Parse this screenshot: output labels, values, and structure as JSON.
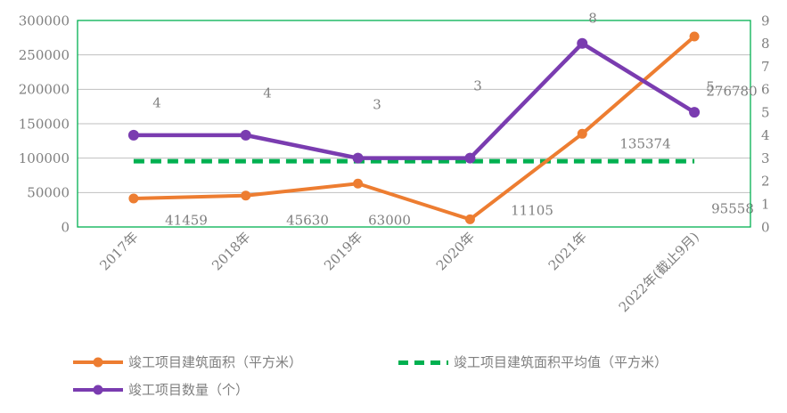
{
  "chart_data": {
    "type": "line",
    "title": "",
    "categories": [
      "2017年",
      "2018年",
      "2019年",
      "2020年",
      "2021年",
      "2022年(截止9月)"
    ],
    "series": [
      {
        "name": "竣工项目建筑面积（平方米）",
        "axis": "left",
        "color": "#ED7D31",
        "marker": "circle",
        "values": [
          41459,
          45630,
          63000,
          11105,
          135374,
          276780
        ],
        "data_labels": [
          "41459",
          "45630",
          "63000",
          "11105",
          "135374",
          "276780"
        ]
      },
      {
        "name": "竣工项目数量（个）",
        "axis": "right",
        "color": "#7A3CB0",
        "marker": "circle",
        "values": [
          4,
          4,
          3,
          3,
          8,
          5
        ],
        "data_labels": [
          "4",
          "4",
          "3",
          "3",
          "8",
          "5"
        ]
      },
      {
        "name": "竣工项目建筑面积平均值（平方米）",
        "axis": "left",
        "color": "#00B050",
        "line_style": "dashed",
        "value": 95558,
        "data_label": "95558"
      }
    ],
    "axes": {
      "y_left": {
        "min": 0,
        "max": 300000,
        "step": 50000,
        "tick_labels": [
          "0",
          "50000",
          "100000",
          "150000",
          "200000",
          "250000",
          "300000"
        ]
      },
      "y_right": {
        "min": 0,
        "max": 9,
        "step": 1,
        "tick_labels": [
          "0",
          "1",
          "2",
          "3",
          "4",
          "5",
          "6",
          "7",
          "8",
          "9"
        ]
      },
      "x": {
        "tick_labels": [
          "2017年",
          "2018年",
          "2019年",
          "2020年",
          "2021年",
          "2022年(截止9月)"
        ],
        "label_rotation_deg": -45
      }
    },
    "grid": "horizontal",
    "legend_position": "bottom",
    "colors": {
      "grid": "#BFBFBF",
      "plot_border": "#00B050",
      "text": "#7F7F7F"
    }
  }
}
